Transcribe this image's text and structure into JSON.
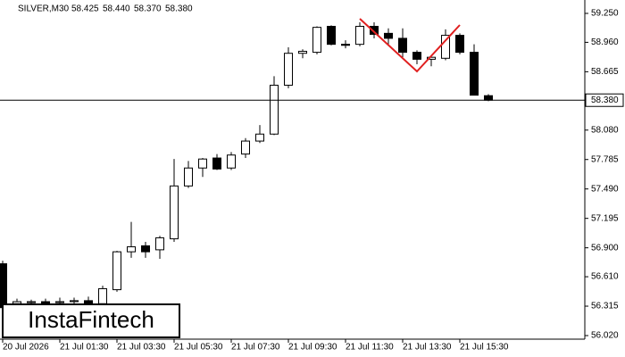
{
  "chart_data": {
    "type": "candlestick",
    "title": "SILVER,M30",
    "header_values": [
      "58.425",
      "58.440",
      "58.370",
      "58.380"
    ],
    "watermark": "InstaFintech",
    "categories": [
      "20 Jul 2026",
      null,
      null,
      null,
      "21 Jul 01:30",
      null,
      null,
      null,
      "21 Jul 03:30",
      null,
      null,
      null,
      "21 Jul 05:30",
      null,
      null,
      null,
      "21 Jul 07:30",
      null,
      null,
      null,
      "21 Jul 09:30",
      null,
      null,
      null,
      "21 Jul 11:30",
      null,
      null,
      null,
      "21 Jul 13:30",
      null,
      null,
      null,
      "21 Jul 15:30",
      null,
      null
    ],
    "open": [
      56.74,
      56.34,
      56.35,
      56.36,
      56.35,
      56.36,
      56.37,
      56.34,
      56.48,
      56.86,
      56.92,
      56.88,
      56.99,
      57.52,
      57.7,
      57.8,
      57.7,
      57.84,
      57.97,
      58.04,
      58.53,
      58.85,
      58.86,
      59.12,
      58.94,
      58.94,
      59.12,
      59.05,
      59.0,
      58.86,
      58.79,
      58.8,
      59.03,
      58.86,
      58.425
    ],
    "high": [
      56.77,
      56.39,
      56.38,
      56.39,
      56.4,
      56.4,
      56.41,
      56.52,
      56.87,
      57.16,
      56.96,
      57.02,
      57.79,
      57.77,
      57.8,
      57.84,
      57.86,
      58.0,
      58.13,
      58.62,
      58.91,
      58.89,
      59.12,
      59.13,
      58.98,
      59.16,
      59.16,
      59.1,
      59.1,
      58.88,
      58.83,
      59.09,
      59.05,
      58.94,
      58.44
    ],
    "low": [
      56.25,
      56.31,
      56.32,
      56.31,
      56.3,
      56.32,
      56.33,
      56.31,
      56.46,
      56.8,
      56.8,
      56.79,
      56.96,
      57.5,
      57.61,
      57.68,
      57.68,
      57.8,
      57.95,
      58.03,
      58.5,
      58.8,
      58.84,
      58.93,
      58.9,
      58.92,
      59.0,
      58.94,
      58.81,
      58.74,
      58.72,
      58.78,
      58.84,
      58.43,
      58.37
    ],
    "close": [
      56.3,
      56.36,
      56.36,
      56.34,
      56.36,
      56.37,
      56.34,
      56.49,
      56.86,
      56.91,
      56.86,
      57.0,
      57.52,
      57.7,
      57.79,
      57.69,
      57.83,
      57.97,
      58.04,
      58.53,
      58.85,
      58.87,
      59.11,
      58.94,
      58.93,
      59.12,
      59.04,
      59.0,
      58.86,
      58.79,
      58.81,
      59.03,
      58.86,
      58.43,
      58.38
    ],
    "up_color": "#ffffff",
    "down_color": "#000000",
    "ylim": [
      56.02,
      59.25
    ],
    "yticks": [
      {
        "value": 59.25,
        "label": "59.250"
      },
      {
        "value": 58.96,
        "label": "58.960"
      },
      {
        "value": 58.665,
        "label": "58.665"
      },
      {
        "value": 58.08,
        "label": "58.080"
      },
      {
        "value": 57.785,
        "label": "57.785"
      },
      {
        "value": 57.49,
        "label": "57.490"
      },
      {
        "value": 57.195,
        "label": "57.195"
      },
      {
        "value": 56.9,
        "label": "56.900"
      },
      {
        "value": 56.61,
        "label": "56.610"
      },
      {
        "value": 56.315,
        "label": "56.315"
      },
      {
        "value": 56.02,
        "label": "56.020"
      }
    ],
    "last_price": {
      "value": 58.38,
      "label": "58.380"
    }
  }
}
